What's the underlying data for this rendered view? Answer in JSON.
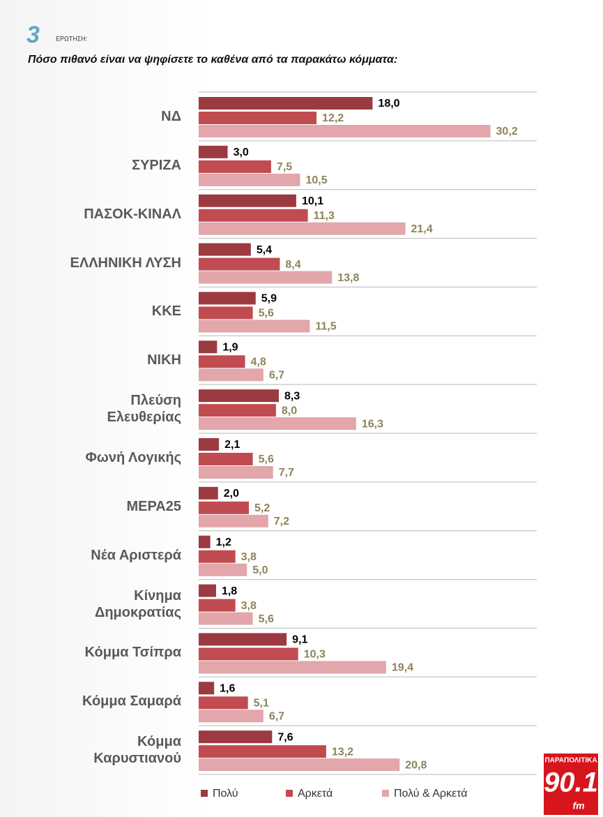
{
  "chart_data": {
    "type": "grouped-hbar",
    "question_number": "3",
    "question_label": "ΕΡΩΤΗΣΗ:",
    "title": "Πόσο πιθανό είναι να ψηφίσετε το καθένα από τα παρακάτω κόμματα:",
    "categories": [
      "ΝΔ",
      "ΣΥΡΙΖΑ",
      "ΠΑΣΟΚ-ΚΙΝΑΛ",
      "ΕΛΛΗΝΙΚΗ ΛΥΣΗ",
      "ΚΚΕ",
      "ΝΙΚΗ",
      "Πλεύση\nΕλευθερίας",
      "Φωνή Λογικής",
      "ΜΕΡΑ25",
      "Νέα Αριστερά",
      "Κίνημα\nΔημοκρατίας",
      "Κόμμα Τσίπρα",
      "Κόμμα Σαμαρά",
      "Κόμμα\nΚαρυστιανού"
    ],
    "xlim": [
      0,
      35
    ],
    "series": [
      {
        "name": "Πολύ",
        "color": "#9c3a41",
        "label_color": "#000000",
        "values": [
          18.0,
          3.0,
          10.1,
          5.4,
          5.9,
          1.9,
          8.3,
          2.1,
          2.0,
          1.2,
          1.8,
          9.1,
          1.6,
          7.6
        ],
        "value_labels": [
          "18,0",
          "3,0",
          "10,1",
          "5,4",
          "5,9",
          "1,9",
          "8,3",
          "2,1",
          "2,0",
          "1,2",
          "1,8",
          "9,1",
          "1,6",
          "7,6"
        ]
      },
      {
        "name": "Αρκετά",
        "color": "#c04b50",
        "label_color": "#8c8458",
        "values": [
          12.2,
          7.5,
          11.3,
          8.4,
          5.6,
          4.8,
          8.0,
          5.6,
          5.2,
          3.8,
          3.8,
          10.3,
          5.1,
          13.2
        ],
        "value_labels": [
          "12,2",
          "7,5",
          "11,3",
          "8,4",
          "5,6",
          "4,8",
          "8,0",
          "5,6",
          "5,2",
          "3,8",
          "3,8",
          "10,3",
          "5,1",
          "13,2"
        ]
      },
      {
        "name": "Πολύ & Αρκετά",
        "color": "#e2a6ab",
        "label_color": "#8c8458",
        "values": [
          30.2,
          10.5,
          21.4,
          13.8,
          11.5,
          6.7,
          16.3,
          7.7,
          7.2,
          5.0,
          5.6,
          19.4,
          6.7,
          20.8
        ],
        "value_labels": [
          "30,2",
          "10,5",
          "21,4",
          "13,8",
          "11,5",
          "6,7",
          "16,3",
          "7,7",
          "7,2",
          "5,0",
          "5,6",
          "19,4",
          "6,7",
          "20,8"
        ]
      }
    ],
    "legend": "bottom"
  },
  "logo": {
    "name": "ΠΑΡΑΠΟΛΙΤΙΚΑ",
    "frequency": "90.1",
    "unit": "fm"
  }
}
